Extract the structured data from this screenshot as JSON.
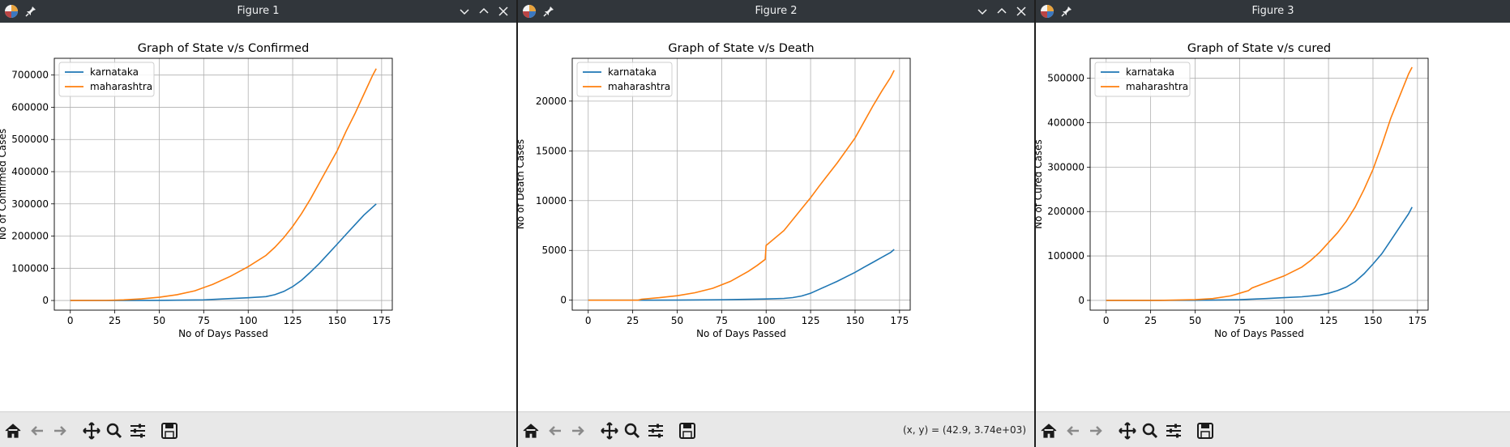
{
  "windows": [
    {
      "title": "Figure 1",
      "coords": "",
      "chart_data": {
        "type": "line",
        "title": "Graph of State v/s Confirmed",
        "xlabel": "No of Days Passed",
        "ylabel": "No of Confirmed Cases",
        "xlim": [
          -9,
          181
        ],
        "ylim": [
          -30000,
          752000
        ],
        "xticks": [
          0,
          25,
          50,
          75,
          100,
          125,
          150,
          175
        ],
        "yticks": [
          0,
          100000,
          200000,
          300000,
          400000,
          500000,
          600000,
          700000
        ],
        "grid": true,
        "legend": "upper-left",
        "series": [
          {
            "name": "karnataka",
            "color": "#1f77b4",
            "x": [
              0,
              25,
              50,
              75,
              90,
              100,
              110,
              115,
              120,
              125,
              130,
              135,
              140,
              145,
              150,
              155,
              160,
              165,
              170,
              172
            ],
            "y": [
              0,
              20,
              300,
              2000,
              6000,
              8500,
              12000,
              18000,
              28000,
              43000,
              63000,
              88000,
              115000,
              145000,
              175000,
              205000,
              235000,
              265000,
              290000,
              300000
            ]
          },
          {
            "name": "maharashtra",
            "color": "#ff7f0e",
            "x": [
              0,
              20,
              30,
              40,
              50,
              60,
              70,
              80,
              90,
              100,
              110,
              115,
              120,
              125,
              130,
              135,
              140,
              145,
              150,
              155,
              160,
              165,
              170,
              172
            ],
            "y": [
              0,
              200,
              2000,
              5000,
              10000,
              18000,
              30000,
              50000,
              75000,
              105000,
              140000,
              165000,
              195000,
              230000,
              270000,
              315000,
              365000,
              415000,
              465000,
              525000,
              580000,
              640000,
              700000,
              720000
            ]
          }
        ]
      }
    },
    {
      "title": "Figure 2",
      "coords": "(x, y) = (42.9, 3.74e+03)",
      "chart_data": {
        "type": "line",
        "title": "Graph of State v/s Death",
        "xlabel": "No of Days Passed",
        "ylabel": "No of Death Cases",
        "xlim": [
          -9,
          181
        ],
        "ylim": [
          -1000,
          24300
        ],
        "xticks": [
          0,
          25,
          50,
          75,
          100,
          125,
          150,
          175
        ],
        "yticks": [
          0,
          5000,
          10000,
          15000,
          20000
        ],
        "grid": true,
        "legend": "upper-left",
        "series": [
          {
            "name": "karnataka",
            "color": "#1f77b4",
            "x": [
              0,
              30,
              50,
              75,
              100,
              110,
              115,
              120,
              125,
              130,
              135,
              140,
              145,
              150,
              155,
              160,
              165,
              170,
              172
            ],
            "y": [
              0,
              0,
              10,
              40,
              120,
              180,
              260,
              420,
              700,
              1100,
              1500,
              1900,
              2350,
              2800,
              3300,
              3800,
              4300,
              4800,
              5100
            ]
          },
          {
            "name": "maharashtra",
            "color": "#ff7f0e",
            "x": [
              0,
              28,
              30,
              40,
              50,
              60,
              70,
              80,
              90,
              95,
              99.5,
              100,
              110,
              120,
              125,
              130,
              140,
              150,
              160,
              165,
              170,
              172
            ],
            "y": [
              0,
              0,
              100,
              250,
              450,
              750,
              1200,
              1900,
              2900,
              3500,
              4100,
              5500,
              7000,
              9200,
              10300,
              11500,
              13800,
              16300,
              19500,
              21000,
              22400,
              23100
            ]
          }
        ]
      }
    },
    {
      "title": "Figure 3",
      "coords": "",
      "chart_data": {
        "type": "line",
        "title": "Graph of State v/s cured",
        "xlabel": "No of Days Passed",
        "ylabel": "No of Cured Cases",
        "xlim": [
          -9,
          181
        ],
        "ylim": [
          -22000,
          545000
        ],
        "xticks": [
          0,
          25,
          50,
          75,
          100,
          125,
          150,
          175
        ],
        "yticks": [
          0,
          100000,
          200000,
          300000,
          400000,
          500000
        ],
        "grid": true,
        "legend": "upper-left",
        "series": [
          {
            "name": "karnataka",
            "color": "#1f77b4",
            "x": [
              0,
              25,
              50,
              75,
              90,
              100,
              110,
              120,
              125,
              130,
              135,
              140,
              145,
              150,
              155,
              160,
              165,
              170,
              172
            ],
            "y": [
              0,
              10,
              200,
              1500,
              4000,
              6000,
              8000,
              12000,
              16000,
              22000,
              30000,
              42000,
              60000,
              82000,
              105000,
              135000,
              165000,
              195000,
              210000
            ]
          },
          {
            "name": "maharashtra",
            "color": "#ff7f0e",
            "x": [
              0,
              30,
              50,
              60,
              70,
              80,
              82,
              90,
              100,
              110,
              115,
              120,
              125,
              130,
              135,
              140,
              145,
              150,
              155,
              160,
              165,
              170,
              172
            ],
            "y": [
              0,
              50,
              1500,
              4000,
              10000,
              22000,
              28000,
              40000,
              55000,
              75000,
              90000,
              108000,
              130000,
              152000,
              178000,
              210000,
              250000,
              295000,
              350000,
              410000,
              460000,
              510000,
              525000
            ]
          }
        ]
      }
    }
  ]
}
